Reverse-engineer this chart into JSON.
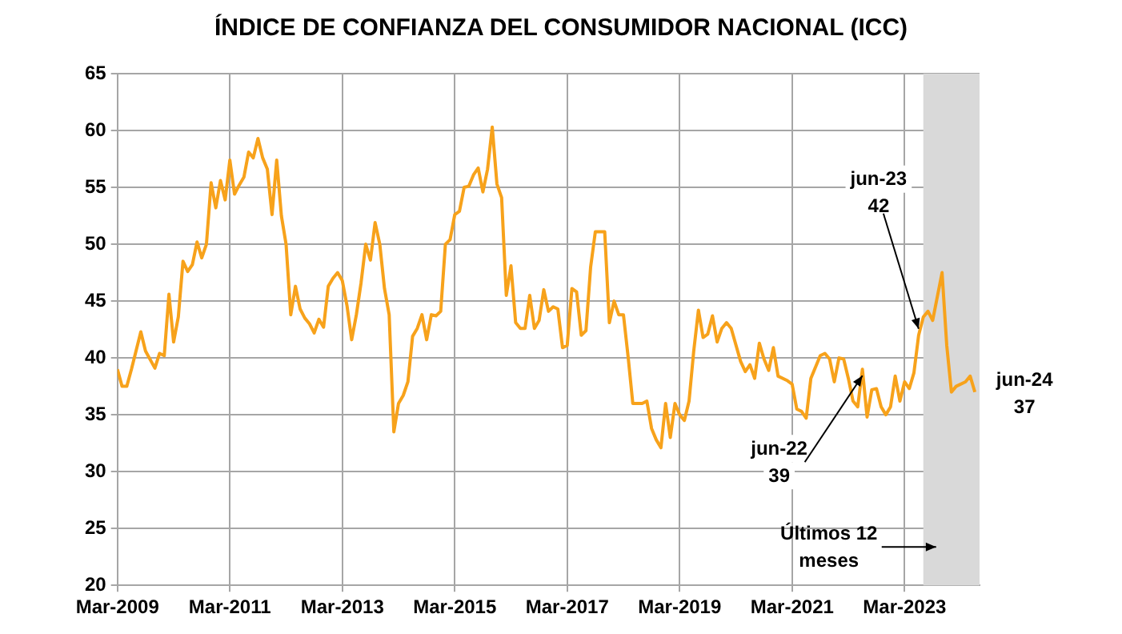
{
  "chart_data": {
    "type": "line",
    "title": "ÍNDICE DE CONFIANZA DEL CONSUMIDOR NACIONAL (ICC)",
    "x": [
      "2009-03",
      "2009-04",
      "2009-05",
      "2009-06",
      "2009-08",
      "2009-09",
      "2009-11",
      "2009-12",
      "2010-01",
      "2010-02",
      "2010-03",
      "2010-04",
      "2010-05",
      "2010-06",
      "2010-07",
      "2010-08",
      "2010-09",
      "2010-10",
      "2010-11",
      "2010-12",
      "2011-01",
      "2011-02",
      "2011-03",
      "2011-04",
      "2011-05",
      "2011-06",
      "2011-07",
      "2011-08",
      "2011-09",
      "2011-10",
      "2011-11",
      "2011-12",
      "2012-01",
      "2012-02",
      "2012-03",
      "2012-04",
      "2012-05",
      "2012-06",
      "2012-07",
      "2012-08",
      "2012-09",
      "2012-10",
      "2012-11",
      "2012-12",
      "2013-01",
      "2013-02",
      "2013-03",
      "2013-04",
      "2013-05",
      "2013-06",
      "2013-07",
      "2013-08",
      "2013-09",
      "2013-10",
      "2013-11",
      "2013-12",
      "2014-01",
      "2014-02",
      "2014-03",
      "2014-04",
      "2014-05",
      "2014-06",
      "2014-07",
      "2014-08",
      "2014-09",
      "2014-10",
      "2014-11",
      "2014-12",
      "2015-01",
      "2015-02",
      "2015-03",
      "2015-04",
      "2015-05",
      "2015-06",
      "2015-07",
      "2015-08",
      "2015-09",
      "2015-10",
      "2015-11",
      "2015-12",
      "2016-01",
      "2016-02",
      "2016-03",
      "2016-04",
      "2016-05",
      "2016-06",
      "2016-07",
      "2016-08",
      "2016-09",
      "2016-10",
      "2016-11",
      "2016-12",
      "2017-01",
      "2017-02",
      "2017-03",
      "2017-04",
      "2017-05",
      "2017-06",
      "2017-07",
      "2017-08",
      "2017-09",
      "2017-10",
      "2017-11",
      "2017-12",
      "2018-01",
      "2018-02",
      "2018-03",
      "2018-04",
      "2018-05",
      "2018-07",
      "2018-08",
      "2018-09",
      "2018-10",
      "2018-11",
      "2018-12",
      "2019-01",
      "2019-02",
      "2019-03",
      "2019-04",
      "2019-05",
      "2019-06",
      "2019-07",
      "2019-08",
      "2019-09",
      "2019-10",
      "2019-11",
      "2019-12",
      "2020-01",
      "2020-02",
      "2020-04",
      "2020-05",
      "2020-06",
      "2020-07",
      "2020-08",
      "2020-09",
      "2020-10",
      "2020-11",
      "2020-12",
      "2021-02",
      "2021-03",
      "2021-04",
      "2021-05",
      "2021-06",
      "2021-07",
      "2021-09",
      "2021-10",
      "2021-11",
      "2021-12",
      "2022-01",
      "2022-02",
      "2022-03",
      "2022-04",
      "2022-05",
      "2022-06",
      "2022-07",
      "2022-08",
      "2022-09",
      "2022-10",
      "2022-11",
      "2022-12",
      "2023-01",
      "2023-02",
      "2023-03",
      "2023-04",
      "2023-05",
      "2023-06",
      "2023-07",
      "2023-08",
      "2023-09",
      "2023-11",
      "2023-12",
      "2024-01",
      "2024-02",
      "2024-04",
      "2024-05",
      "2024-06"
    ],
    "series": [
      {
        "color": "#f7a21b",
        "values": [
          39.0,
          37.5,
          37.5,
          39.0,
          42.3,
          40.6,
          39.1,
          40.4,
          40.2,
          45.6,
          41.4,
          43.6,
          48.5,
          47.6,
          48.2,
          50.2,
          48.8,
          50,
          55.4,
          53.2,
          55.6,
          53.9,
          57.4,
          54.4,
          55.2,
          55.9,
          58.1,
          57.6,
          59.3,
          57.6,
          56.6,
          52.6,
          57.4,
          52.5,
          50,
          43.8,
          46.3,
          44.3,
          43.5,
          43.0,
          42.2,
          43.4,
          42.7,
          46.3,
          47,
          47.5,
          46.8,
          44.6,
          41.6,
          43.8,
          46.6,
          50,
          48.6,
          51.9,
          50,
          46.1,
          43.8,
          33.5,
          36,
          36.7,
          37.9,
          41.9,
          42.6,
          43.8,
          41.6,
          43.8,
          43.7,
          44.1,
          50,
          50.4,
          52.6,
          52.9,
          55,
          55.1,
          56.1,
          56.7,
          54.6,
          56.6,
          60.3,
          55.3,
          54.1,
          45.5,
          48.1,
          43.1,
          42.6,
          42.6,
          45.5,
          42.6,
          43.3,
          46,
          44.1,
          44.5,
          44.3,
          40.9,
          41.1,
          46.1,
          45.8,
          42,
          42.4,
          48,
          51.1,
          51.1,
          51.1,
          43.1,
          45,
          43.8,
          43.8,
          40.1,
          36,
          36,
          36.2,
          33.8,
          32.8,
          32.1,
          36,
          33,
          36,
          35,
          34.5,
          36.2,
          40.6,
          44.2,
          41.8,
          42.1,
          43.7,
          41.4,
          42.6,
          43.1,
          42.6,
          39.7,
          38.8,
          39.4,
          38.2,
          41.3,
          39.9,
          38.9,
          40.9,
          38.4,
          38,
          37.7,
          35.5,
          35.3,
          34.7,
          38.2,
          40.2,
          40.4,
          39.9,
          37.9,
          40,
          39.9,
          38.2,
          36.2,
          35.7,
          39,
          34.8,
          37.2,
          37.3,
          35.7,
          35,
          35.7,
          38.4,
          36.2,
          37.9,
          37.3,
          38.7,
          42,
          43.6,
          44.1,
          43.3,
          47.5,
          41.1,
          37,
          37.5,
          37.9,
          38.4,
          37
        ]
      }
    ],
    "xlim": [
      "2009-03",
      "2024-07"
    ],
    "xticks": [
      {
        "value": "2009-03",
        "label": "Mar-2009"
      },
      {
        "value": "2011-03",
        "label": "Mar-2011"
      },
      {
        "value": "2013-03",
        "label": "Mar-2013"
      },
      {
        "value": "2015-03",
        "label": "Mar-2015"
      },
      {
        "value": "2017-03",
        "label": "Mar-2017"
      },
      {
        "value": "2019-03",
        "label": "Mar-2019"
      },
      {
        "value": "2021-03",
        "label": "Mar-2021"
      },
      {
        "value": "2023-03",
        "label": "Mar-2023"
      }
    ],
    "ylim": [
      20,
      65
    ],
    "yticks": [
      20,
      25,
      30,
      35,
      40,
      45,
      50,
      55,
      60,
      65
    ],
    "grid": true,
    "legend": false,
    "marker": "none",
    "line_style": "solid",
    "bands": [
      {
        "axis": "x",
        "from": "2023-07",
        "to": "2024-07",
        "label": "Últimos 12\nmeses",
        "color": "#d9d9d9"
      }
    ],
    "annotations": [
      {
        "text": "jun-23\n42",
        "x": "2023-06",
        "y": 42
      },
      {
        "text": "jun-22\n39",
        "x": "2022-06",
        "y": 39
      },
      {
        "text": "jun-24\n37",
        "x": "2024-06",
        "y": 37
      }
    ]
  }
}
